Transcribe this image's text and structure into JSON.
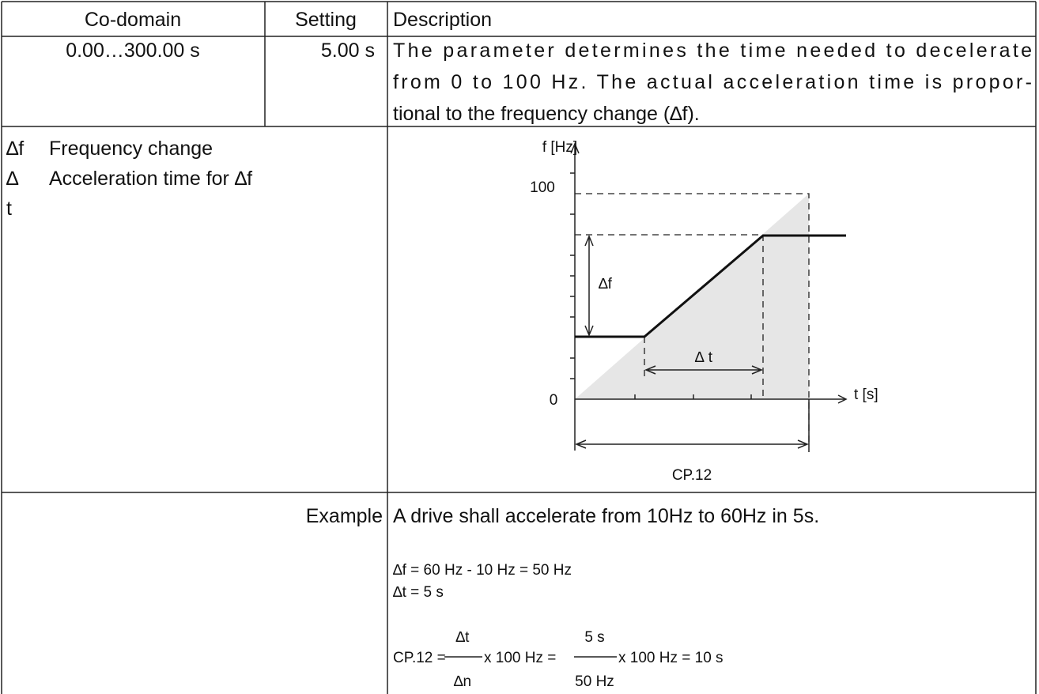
{
  "table": {
    "header": [
      "Co-domain",
      "Setting",
      "Description"
    ],
    "row": {
      "co_domain": "0.00…300.00 s",
      "setting": "5.00 s",
      "description": [
        "The parameter determines the time needed to decelerate",
        "from 0 to 100 Hz. The actual acceleration time is propor-",
        "tional to the frequency change (∆f)."
      ]
    }
  },
  "legend": [
    {
      "symbol": "∆f",
      "text": "Frequency change"
    },
    {
      "symbol": "∆",
      "text": "Acceleration time for ∆f"
    },
    {
      "symbol": "t"
    }
  ],
  "diagram": {
    "y_label": "f [Hz]",
    "x_label": "t [s]",
    "y_top": "100",
    "y_zero": "0",
    "delta_f": "∆f",
    "delta_t": "∆  t",
    "span": "CP.12"
  },
  "example": {
    "label": "Example",
    "sentence": "A drive shall accelerate from 10Hz to 60Hz in 5s.",
    "lines": [
      "∆f = 60 Hz - 10 Hz = 50 Hz",
      "∆t = 5 s"
    ],
    "formula": {
      "lhs": "CP.12 =",
      "num1": "∆t",
      "den1": "∆n",
      "mid": "x 100 Hz =",
      "num2": "5 s",
      "den2": "50 Hz",
      "rhs": "x 100 Hz = 10 s"
    }
  }
}
